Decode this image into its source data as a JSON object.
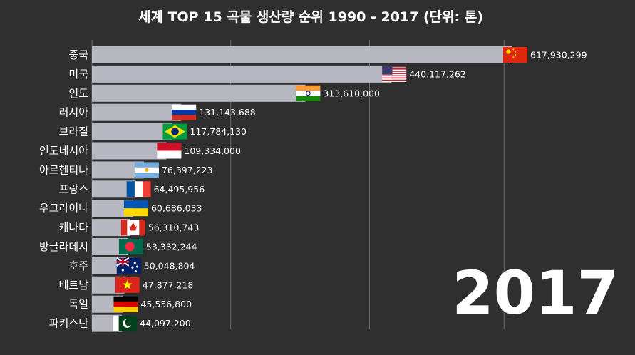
{
  "title": "세계 TOP 15 곡물 생산량 순위 1990 - 2017 (단위: 톤)",
  "year": "2017",
  "colors": {
    "background": "#2f2f2f",
    "bar": "#b7b7c2",
    "grid": "#6a6a6a",
    "text": "#ffffff"
  },
  "chart_data": {
    "type": "bar",
    "orientation": "horizontal",
    "title": "세계 TOP 15 곡물 생산량 순위 1990 - 2017 (단위: 톤)",
    "xlim": [
      0,
      617930299
    ],
    "grid": true,
    "categories": [
      "중국",
      "미국",
      "인도",
      "러시아",
      "브라질",
      "인도네시아",
      "아르헨티나",
      "프랑스",
      "우크라이나",
      "캐나다",
      "방글라데시",
      "호주",
      "베트남",
      "독일",
      "파키스탄"
    ],
    "values": [
      617930299,
      440117262,
      313610000,
      131143688,
      117784130,
      109334000,
      76397223,
      64495956,
      60686033,
      56310743,
      53332244,
      50048804,
      47877218,
      45556800,
      44097200
    ],
    "value_labels": [
      "617,930,299",
      "440,117,262",
      "313,610,000",
      "131,143,688",
      "117,784,130",
      "109,334,000",
      "76,397,223",
      "64,495,956",
      "60,686,033",
      "56,310,743",
      "53,332,244",
      "50,048,804",
      "47,877,218",
      "45,556,800",
      "44,097,200"
    ],
    "flags": [
      "china",
      "usa",
      "india",
      "russia",
      "brazil",
      "indonesia",
      "argentina",
      "france",
      "ukraine",
      "canada",
      "bangladesh",
      "australia",
      "vietnam",
      "germany",
      "pakistan"
    ]
  }
}
